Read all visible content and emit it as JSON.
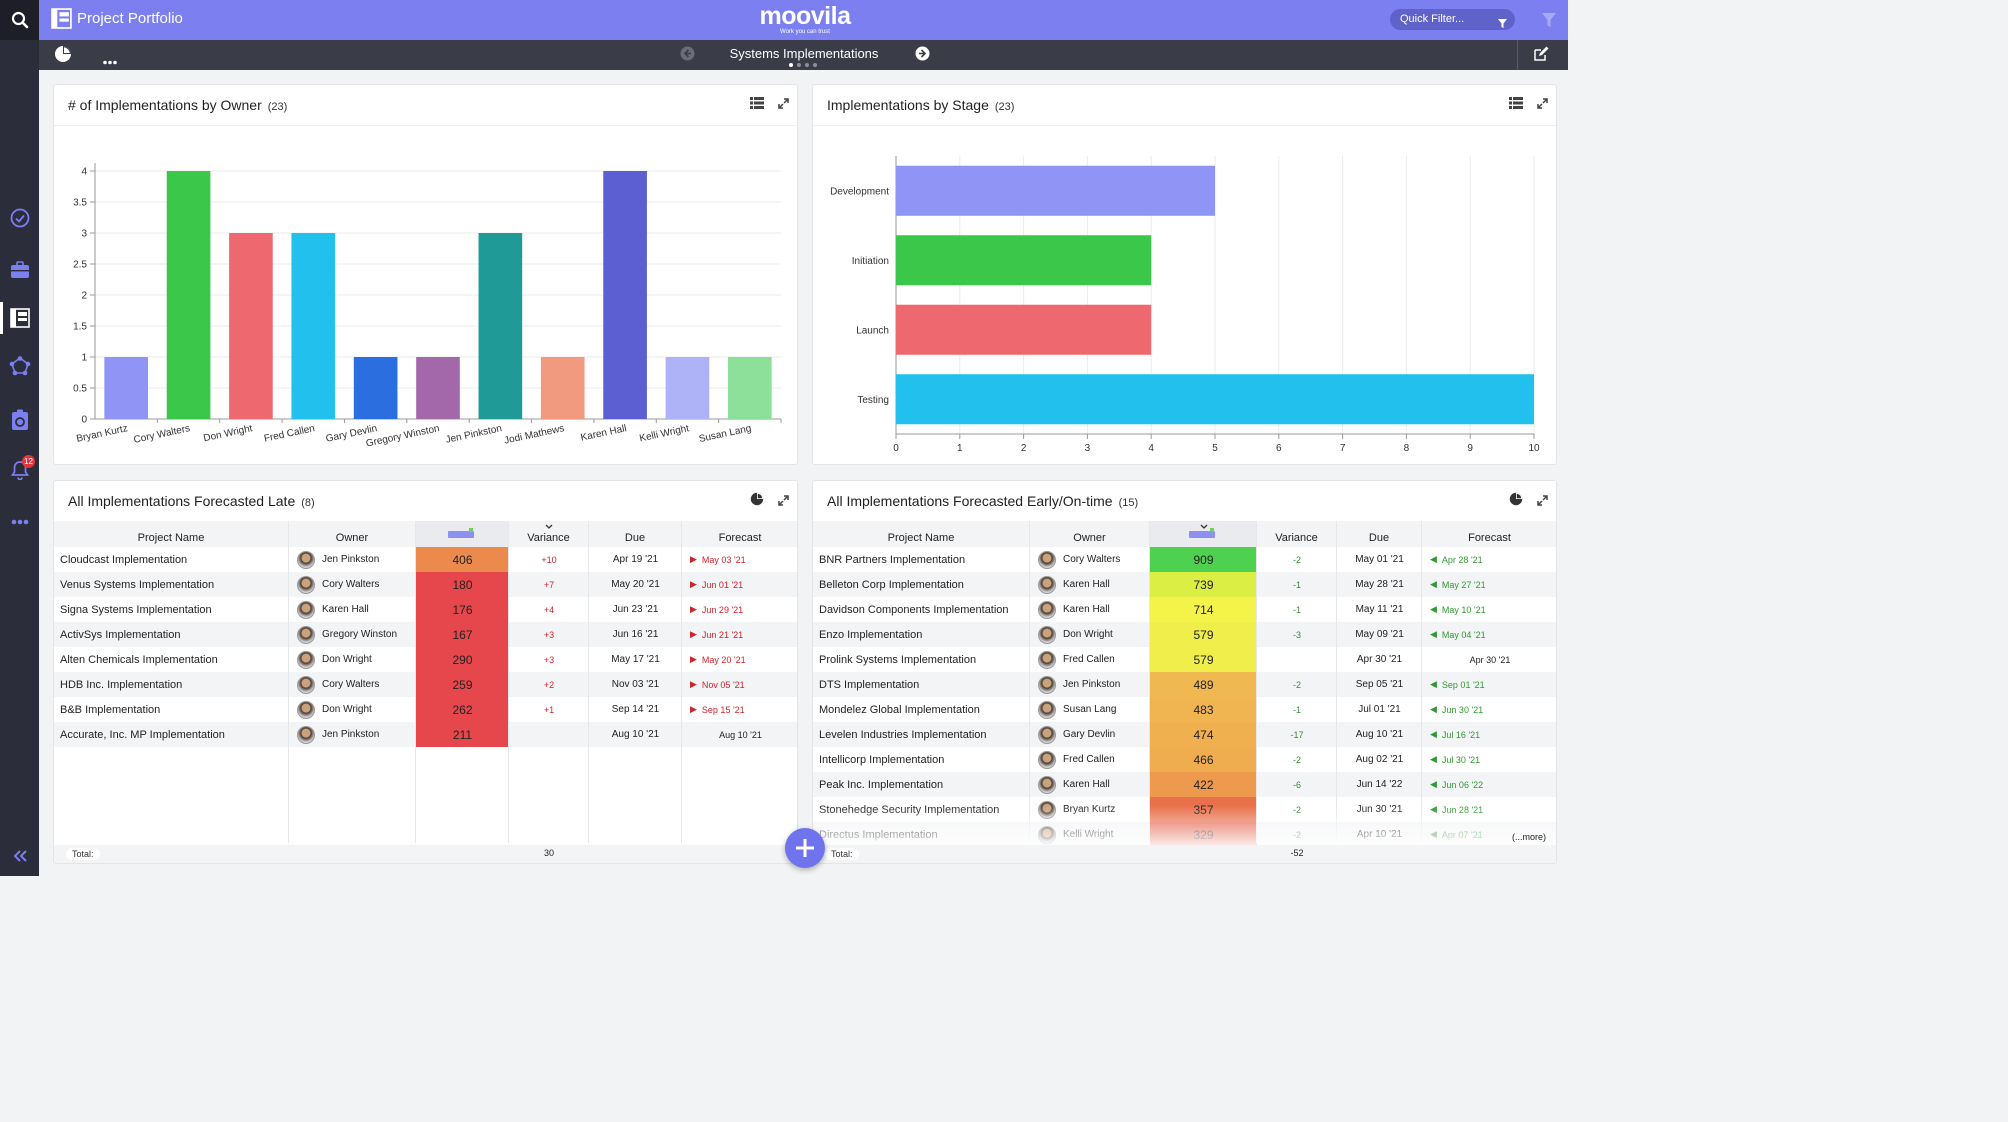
{
  "app": {
    "title": "Project Portfolio",
    "logo_name": "moovila",
    "logo_tagline": "Work you can trust",
    "notifications": "12"
  },
  "header": {
    "quick_filter": "Quick Filter..."
  },
  "subbar": {
    "dashboard_title": "Systems Implementations"
  },
  "colors": {
    "header": "#7b7ff0",
    "rail": "#2b2d3a",
    "subbar": "#3a3c48",
    "fab": "#6f73ee"
  },
  "icons": {
    "rail": [
      "search-icon",
      "check-circle-icon",
      "briefcase-icon",
      "portfolio-icon",
      "network-icon",
      "badge-icon",
      "bell-icon",
      "more-icon",
      "collapse-icon"
    ]
  },
  "panel_owner": {
    "title": "# of Implementations by Owner",
    "count": "(23)"
  },
  "panel_stage": {
    "title": "Implementations by Stage",
    "count": "(23)"
  },
  "panel_late": {
    "title": "All Implementations Forecasted Late",
    "count": "(8)",
    "columns": [
      "Project Name",
      "Owner",
      "mPIX",
      "Variance",
      "Due",
      "Forecast"
    ],
    "rows": [
      {
        "name": "Cloudcast Implementation",
        "owner": "Jen Pinkston",
        "mpix": 406,
        "color": "#ec8a4e",
        "variance": "+10",
        "due": "Apr 19 '21",
        "forecast": "May 03 '21"
      },
      {
        "name": "Venus Systems Implementation",
        "owner": "Cory Walters",
        "mpix": 180,
        "color": "#e5474c",
        "variance": "+7",
        "due": "May 20 '21",
        "forecast": "Jun 01 '21"
      },
      {
        "name": "Signa Systems Implementation",
        "owner": "Karen Hall",
        "mpix": 176,
        "color": "#e5474c",
        "variance": "+4",
        "due": "Jun 23 '21",
        "forecast": "Jun 29 '21"
      },
      {
        "name": "ActivSys Implementation",
        "owner": "Gregory Winston",
        "mpix": 167,
        "color": "#e5474c",
        "variance": "+3",
        "due": "Jun 16 '21",
        "forecast": "Jun 21 '21"
      },
      {
        "name": "Alten Chemicals Implementation",
        "owner": "Don Wright",
        "mpix": 290,
        "color": "#e5474c",
        "variance": "+3",
        "due": "May 17 '21",
        "forecast": "May 20 '21"
      },
      {
        "name": "HDB Inc. Implementation",
        "owner": "Cory Walters",
        "mpix": 259,
        "color": "#e5474c",
        "variance": "+2",
        "due": "Nov 03 '21",
        "forecast": "Nov 05 '21"
      },
      {
        "name": "B&B Implementation",
        "owner": "Don Wright",
        "mpix": 262,
        "color": "#e5474c",
        "variance": "+1",
        "due": "Sep 14 '21",
        "forecast": "Sep 15 '21"
      },
      {
        "name": "Accurate, Inc. MP Implementation",
        "owner": "Jen Pinkston",
        "mpix": 211,
        "color": "#e5474c",
        "variance": "",
        "due": "Aug 10 '21",
        "forecast": "Aug 10 '21"
      }
    ],
    "total_label": "Total:",
    "total": "30"
  },
  "panel_early": {
    "title": "All Implementations Forecasted Early/On-time",
    "count": "(15)",
    "columns": [
      "Project Name",
      "Owner",
      "mPIX",
      "Variance",
      "Due",
      "Forecast"
    ],
    "rows": [
      {
        "name": "BNR Partners Implementation",
        "owner": "Cory Walters",
        "mpix": 909,
        "color": "#4ed14e",
        "variance": "-2",
        "due": "May 01 '21",
        "forecast": "Apr 28 '21"
      },
      {
        "name": "Belleton Corp Implementation",
        "owner": "Karen Hall",
        "mpix": 739,
        "color": "#dbee44",
        "variance": "-1",
        "due": "May 28 '21",
        "forecast": "May 27 '21"
      },
      {
        "name": "Davidson Components Implementation",
        "owner": "Karen Hall",
        "mpix": 714,
        "color": "#f3f34a",
        "variance": "-1",
        "due": "May 11 '21",
        "forecast": "May 10 '21"
      },
      {
        "name": "Enzo Implementation",
        "owner": "Don Wright",
        "mpix": 579,
        "color": "#f0ee4a",
        "variance": "-3",
        "due": "May 09 '21",
        "forecast": "May 04 '21"
      },
      {
        "name": "Prolink Systems Implementation",
        "owner": "Fred Callen",
        "mpix": 579,
        "color": "#f0ee4a",
        "variance": "",
        "due": "Apr 30 '21",
        "forecast": "Apr 30 '21"
      },
      {
        "name": "DTS Implementation",
        "owner": "Jen Pinkston",
        "mpix": 489,
        "color": "#f0b850",
        "variance": "-2",
        "due": "Sep 05 '21",
        "forecast": "Sep 01 '21"
      },
      {
        "name": "Mondelez Global Implementation",
        "owner": "Susan Lang",
        "mpix": 483,
        "color": "#f0b450",
        "variance": "-1",
        "due": "Jul 01 '21",
        "forecast": "Jun 30 '21"
      },
      {
        "name": "Levelen Industries Implementation",
        "owner": "Gary Devlin",
        "mpix": 474,
        "color": "#f0b050",
        "variance": "-17",
        "due": "Aug 10 '21",
        "forecast": "Jul 16 '21"
      },
      {
        "name": "Intellicorp Implementation",
        "owner": "Fred Callen",
        "mpix": 466,
        "color": "#f0ad50",
        "variance": "-2",
        "due": "Aug 02 '21",
        "forecast": "Jul 30 '21"
      },
      {
        "name": "Peak Inc. Implementation",
        "owner": "Karen Hall",
        "mpix": 422,
        "color": "#ee9a4e",
        "variance": "-6",
        "due": "Jun 14 '22",
        "forecast": "Jun 06 '22"
      },
      {
        "name": "Stonehedge Security Implementation",
        "owner": "Bryan Kurtz",
        "mpix": 357,
        "color": "#e8704a",
        "variance": "-2",
        "due": "Jun 30 '21",
        "forecast": "Jun 28 '21"
      },
      {
        "name": "Directus Implementation",
        "owner": "Kelli Wright",
        "mpix": 329,
        "color": "#e5604a",
        "variance": "-2",
        "due": "Apr 10 '21",
        "forecast": "Apr 07 '21"
      }
    ],
    "more": "(...more)",
    "total_label": "Total:",
    "total": "-52"
  },
  "chart_data": [
    {
      "type": "bar",
      "categories": [
        "Bryan Kurtz",
        "Cory Walters",
        "Don Wright",
        "Fred Callen",
        "Gary Devlin",
        "Gregory Winston",
        "Jen Pinkston",
        "Jodi Mathews",
        "Karen Hall",
        "Kelli Wright",
        "Susan Lang"
      ],
      "values": [
        1,
        4,
        3,
        3,
        1,
        1,
        3,
        1,
        4,
        1,
        1
      ],
      "colors": [
        "#8f94f5",
        "#3bc84a",
        "#ee6870",
        "#22c0ec",
        "#2b6ee0",
        "#a268aa",
        "#1f9a96",
        "#f19a80",
        "#5b5fd1",
        "#aeb2f7",
        "#8ce09a"
      ],
      "ylim": [
        0,
        4
      ],
      "yticks": [
        "0",
        "0.5",
        "1",
        "1.5",
        "2",
        "2.5",
        "3",
        "3.5",
        "4"
      ],
      "grid": true
    },
    {
      "type": "bar",
      "orientation": "horizontal",
      "categories": [
        "Development",
        "Initiation",
        "Launch",
        "Testing"
      ],
      "values": [
        5,
        4,
        4,
        10
      ],
      "colors": [
        "#8f94f5",
        "#3bc84a",
        "#ee6870",
        "#22c0ec"
      ],
      "xlim": [
        0,
        10
      ],
      "xticks": [
        "0",
        "1",
        "2",
        "3",
        "4",
        "5",
        "6",
        "7",
        "8",
        "9",
        "10"
      ],
      "grid": true
    }
  ]
}
